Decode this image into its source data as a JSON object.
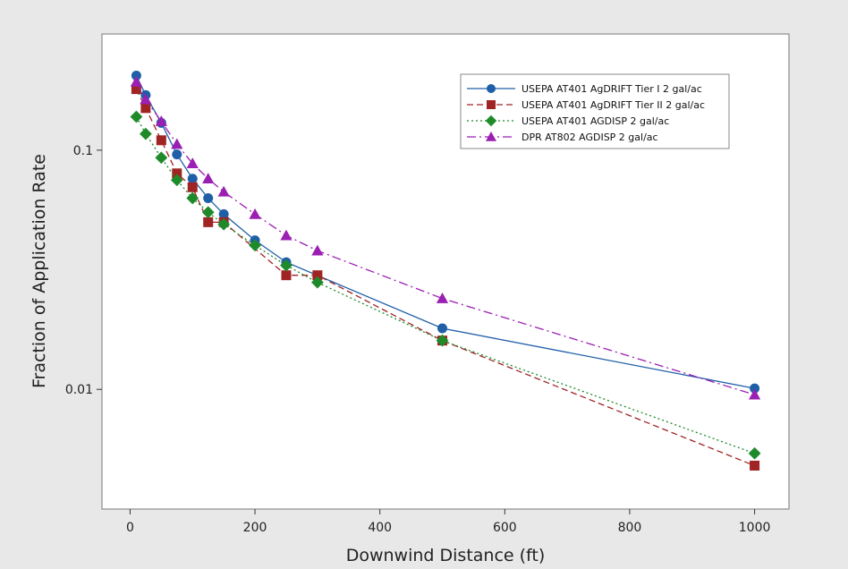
{
  "chart_data": {
    "type": "line",
    "xlabel": "Downwind Distance (ft)",
    "ylabel": "Fraction of Application Rate",
    "yscale": "log",
    "xlim": [
      -45,
      1055
    ],
    "ylim": [
      0.00316,
      0.306
    ],
    "xticks": [
      0,
      200,
      400,
      600,
      800,
      1000
    ],
    "yticks": [
      0.01,
      0.1
    ],
    "xtick_labels": [
      "0",
      "200",
      "400",
      "600",
      "800",
      "1000"
    ],
    "ytick_labels": [
      "0.01",
      "0.1"
    ],
    "grid": false,
    "legend_position": "top-right",
    "series": [
      {
        "name": "USEPA AT401 AgDRIFT Tier I 2 gal/ac",
        "color": "#1f5fa8",
        "marker": "circle",
        "linestyle": "solid",
        "x": [
          10,
          25,
          50,
          75,
          100,
          125,
          150,
          200,
          250,
          500,
          1000
        ],
        "y": [
          0.205,
          0.17,
          0.13,
          0.096,
          0.076,
          0.063,
          0.054,
          0.042,
          0.034,
          0.018,
          0.0101
        ]
      },
      {
        "name": "USEPA AT401 AgDRIFT Tier II 2 gal/ac",
        "color": "#a02424",
        "marker": "square",
        "linestyle": "dashed",
        "x": [
          10,
          25,
          50,
          75,
          100,
          125,
          150,
          250,
          300,
          500,
          1000
        ],
        "y": [
          0.18,
          0.15,
          0.11,
          0.08,
          0.07,
          0.05,
          0.05,
          0.03,
          0.03,
          0.016,
          0.0048
        ]
      },
      {
        "name": "USEPA AT401 AGDISP 2 gal/ac",
        "color": "#1e8a2a",
        "marker": "diamond",
        "linestyle": "dotted",
        "x": [
          10,
          25,
          50,
          75,
          100,
          125,
          150,
          200,
          250,
          300,
          500,
          1000
        ],
        "y": [
          0.138,
          0.117,
          0.093,
          0.075,
          0.063,
          0.055,
          0.049,
          0.04,
          0.033,
          0.028,
          0.016,
          0.0054
        ]
      },
      {
        "name": "DPR AT802 AGDISP 2 gal/ac",
        "color": "#9b1fb3",
        "marker": "triangle",
        "linestyle": "dashdot",
        "x": [
          10,
          25,
          50,
          75,
          100,
          125,
          150,
          200,
          250,
          300,
          500,
          1000
        ],
        "y": [
          0.193,
          0.163,
          0.132,
          0.106,
          0.088,
          0.076,
          0.067,
          0.054,
          0.044,
          0.038,
          0.024,
          0.0095
        ]
      }
    ]
  }
}
